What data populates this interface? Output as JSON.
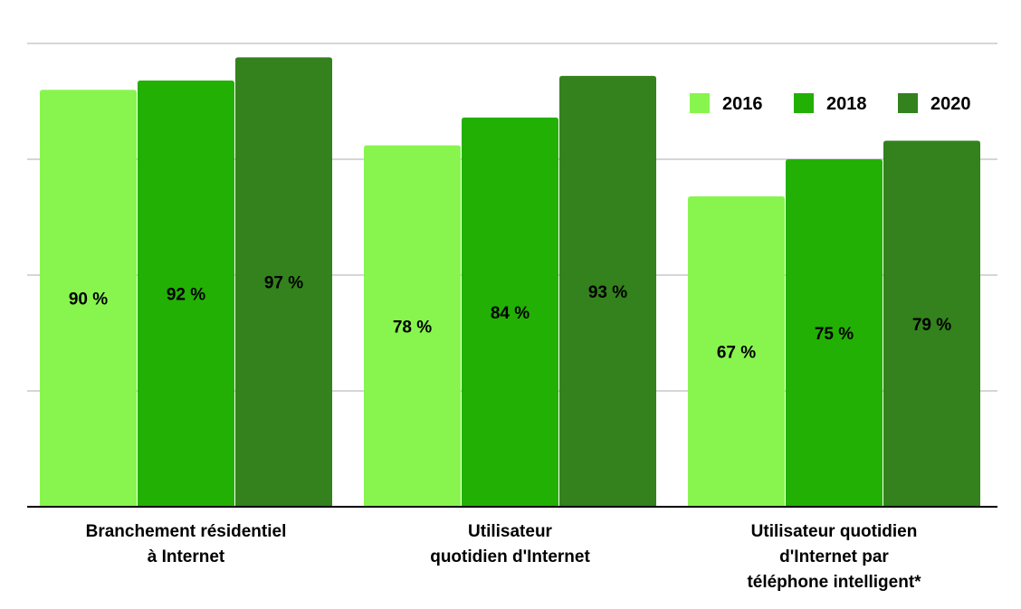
{
  "chart_data": {
    "type": "bar",
    "categories": [
      [
        "Branchement résidentiel",
        "à Internet"
      ],
      [
        "Utilisateur",
        "quotidien d'Internet"
      ],
      [
        "Utilisateur quotidien",
        "d'Internet par",
        "téléphone intelligent*"
      ]
    ],
    "series": [
      {
        "name": "2016",
        "values": [
          90,
          78,
          67
        ],
        "labels": [
          "90 %",
          "78 %",
          "67 %"
        ]
      },
      {
        "name": "2018",
        "values": [
          92,
          84,
          75
        ],
        "labels": [
          "92 %",
          "84 %",
          "75 %"
        ]
      },
      {
        "name": "2020",
        "values": [
          97,
          93,
          79
        ],
        "labels": [
          "97 %",
          "93 %",
          "79 %"
        ]
      }
    ],
    "ylim": [
      0,
      100
    ],
    "grid": true,
    "legend_position": "top-right",
    "colors": [
      "#88f54f",
      "#23b004",
      "#33821d"
    ]
  }
}
